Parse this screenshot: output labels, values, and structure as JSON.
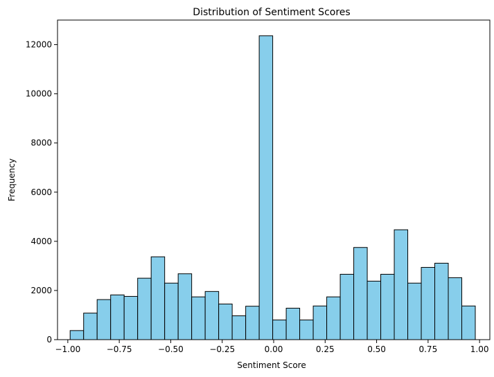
{
  "chart_data": {
    "type": "bar",
    "title": "Distribution of Sentiment Scores",
    "xlabel": "Sentiment Score",
    "ylabel": "Frequency",
    "xlim": [
      -1.05,
      1.05
    ],
    "ylim": [
      0,
      13000
    ],
    "bin_width": 0.0656,
    "bin_start": -0.9887,
    "values": [
      370,
      1080,
      1630,
      1820,
      1760,
      2500,
      3370,
      2300,
      2680,
      1740,
      1960,
      1450,
      970,
      1360,
      12360,
      800,
      1280,
      800,
      1370,
      1740,
      2660,
      3750,
      2380,
      2660,
      4470,
      2300,
      2940,
      3110,
      2520,
      1370
    ],
    "xticks": [
      -1.0,
      -0.75,
      -0.5,
      -0.25,
      0.0,
      0.25,
      0.5,
      0.75,
      1.0
    ],
    "xtick_labels": [
      "−1.00",
      "−0.75",
      "−0.50",
      "−0.25",
      "0.00",
      "0.25",
      "0.50",
      "0.75",
      "1.00"
    ],
    "yticks": [
      0,
      2000,
      4000,
      6000,
      8000,
      10000,
      12000
    ],
    "ytick_labels": [
      "0",
      "2000",
      "4000",
      "6000",
      "8000",
      "10000",
      "12000"
    ],
    "bar_color": "#87ceeb",
    "edge_color": "#000000",
    "grid": false,
    "legend": false
  }
}
